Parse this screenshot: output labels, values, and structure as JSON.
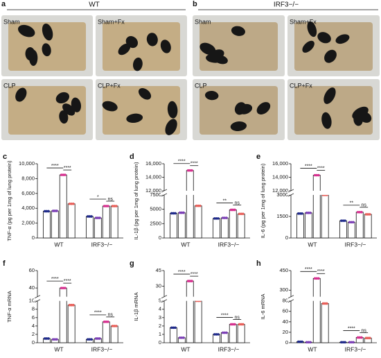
{
  "figure": {
    "panels": [
      {
        "label": "a",
        "title": "WT",
        "photos": [
          "Sham",
          "Sham+Fx",
          "CLP",
          "CLP+Fx"
        ]
      },
      {
        "label": "b",
        "title": "IRF3−/−",
        "photos": [
          "Sham",
          "Sham+Fx",
          "CLP",
          "CLP+Fx"
        ]
      }
    ]
  },
  "chart_data": [
    {
      "label": "c",
      "type": "bar",
      "ylabel": "TNF-α (pg per 1mg of lung protein)",
      "categories": [
        "WT",
        "IRF3−/−"
      ],
      "series": [
        {
          "color": "#1f2a8a",
          "values": [
            3600,
            2900
          ]
        },
        {
          "color": "#7b3fb5",
          "values": [
            3650,
            2700
          ]
        },
        {
          "color": "#d6308f",
          "values": [
            8500,
            4300
          ]
        },
        {
          "color": "#e8605a",
          "values": [
            4600,
            4300
          ]
        }
      ],
      "ylim": [
        0,
        10000
      ],
      "yticks": [
        0,
        {
          "value": 2000,
          "label": "2,000"
        },
        {
          "value": 4000,
          "label": "4,000"
        },
        {
          "value": 6000,
          "label": "6,000"
        },
        {
          "value": 8000,
          "label": "8,000"
        },
        {
          "value": 10000,
          "label": "10,000"
        }
      ],
      "annotations": [
        "****",
        "****",
        "*",
        "ns"
      ]
    },
    {
      "label": "d",
      "type": "bar",
      "ylabel": "IL-1β (pg per 1mg of lung protein)",
      "categories": [
        "WT",
        "IRF3−/−"
      ],
      "series": [
        {
          "color": "#1f2a8a",
          "values": [
            4300,
            3400
          ]
        },
        {
          "color": "#7b3fb5",
          "values": [
            4400,
            3500
          ]
        },
        {
          "color": "#d6308f",
          "values": [
            15000,
            4900
          ]
        },
        {
          "color": "#e8605a",
          "values": [
            5600,
            4200
          ]
        }
      ],
      "ylim": [
        0,
        16000
      ],
      "axis_break": [
        7500,
        12000
      ],
      "yticks": [
        0,
        2500,
        5000,
        7500,
        {
          "value": 12000,
          "label": "12,000"
        },
        {
          "value": 14000,
          "label": "14,000"
        },
        {
          "value": 16000,
          "label": "16,000"
        }
      ],
      "annotations": [
        "****",
        "****",
        "**",
        "ns"
      ]
    },
    {
      "label": "e",
      "type": "bar",
      "ylabel": "IL-6 (pg per 1mg of lung protein)",
      "categories": [
        "WT",
        "IRF3−/−"
      ],
      "series": [
        {
          "color": "#1f2a8a",
          "values": [
            1700,
            1200
          ]
        },
        {
          "color": "#7b3fb5",
          "values": [
            1750,
            1100
          ]
        },
        {
          "color": "#d6308f",
          "values": [
            14300,
            1800
          ]
        },
        {
          "color": "#e8605a",
          "values": [
            3000,
            1650
          ]
        }
      ],
      "ylim": [
        0,
        16000
      ],
      "axis_break": [
        3000,
        12000
      ],
      "yticks": [
        0,
        1500,
        3000,
        {
          "value": 12000,
          "label": "12,000"
        },
        {
          "value": 14000,
          "label": "14,000"
        },
        {
          "value": 16000,
          "label": "16,000"
        }
      ],
      "annotations": [
        "****",
        "****",
        "**",
        "ns"
      ]
    },
    {
      "label": "f",
      "type": "bar",
      "ylabel": "TNF-α mRNA",
      "categories": [
        "WT",
        "IRF3−/−"
      ],
      "series": [
        {
          "color": "#1f2a8a",
          "values": [
            1,
            0.8
          ]
        },
        {
          "color": "#7b3fb5",
          "values": [
            0.8,
            1
          ]
        },
        {
          "color": "#d6308f",
          "values": [
            40,
            5
          ]
        },
        {
          "color": "#e8605a",
          "values": [
            9,
            4
          ]
        }
      ],
      "ylim": [
        0,
        60
      ],
      "axis_break": [
        10,
        30
      ],
      "yticks": [
        0,
        2,
        4,
        6,
        8,
        10,
        40,
        60
      ],
      "annotations": [
        "****",
        "****",
        "****",
        "ns"
      ]
    },
    {
      "label": "g",
      "type": "bar",
      "ylabel": "IL-1β mRNA",
      "categories": [
        "WT",
        "IRF3−/−"
      ],
      "series": [
        {
          "color": "#1f2a8a",
          "values": [
            1.8,
            1
          ]
        },
        {
          "color": "#7b3fb5",
          "values": [
            0.6,
            1.2
          ]
        },
        {
          "color": "#d6308f",
          "values": [
            35,
            2.2
          ]
        },
        {
          "color": "#e8605a",
          "values": [
            5,
            2.2
          ]
        }
      ],
      "ylim": [
        0,
        45
      ],
      "axis_break": [
        5,
        20
      ],
      "yticks": [
        0,
        1,
        2,
        3,
        4,
        5,
        30,
        45
      ],
      "annotations": [
        "****",
        "****",
        "****",
        "ns"
      ]
    },
    {
      "label": "h",
      "type": "bar",
      "ylabel": "IL-6 mRNA",
      "categories": [
        "WT",
        "IRF3−/−"
      ],
      "series": [
        {
          "color": "#1f2a8a",
          "values": [
            2,
            1
          ]
        },
        {
          "color": "#7b3fb5",
          "values": [
            1,
            1
          ]
        },
        {
          "color": "#d6308f",
          "values": [
            390,
            10
          ]
        },
        {
          "color": "#e8605a",
          "values": [
            75,
            9
          ]
        }
      ],
      "ylim": [
        0,
        450
      ],
      "axis_break": [
        80,
        250
      ],
      "yticks": [
        0,
        20,
        40,
        60,
        80,
        300,
        450
      ],
      "annotations": [
        "****",
        "****",
        "****",
        "ns"
      ]
    }
  ]
}
